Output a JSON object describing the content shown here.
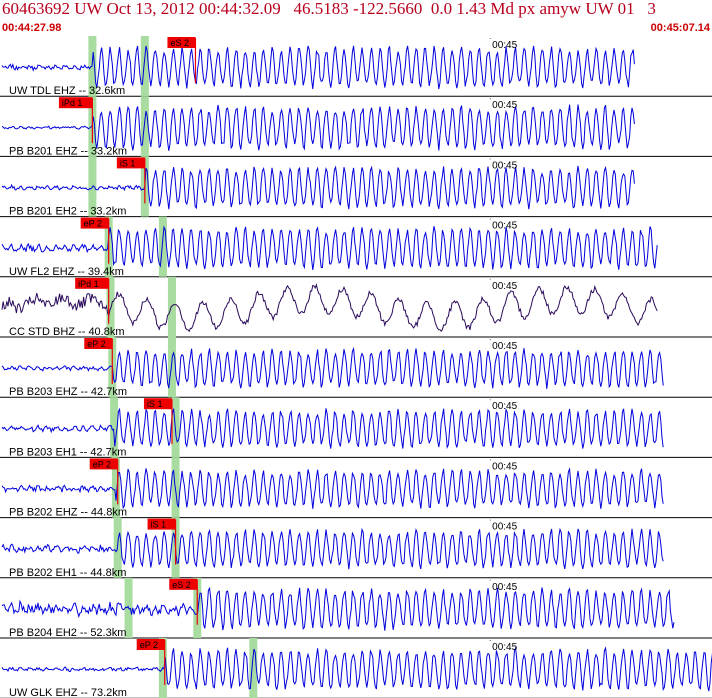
{
  "header": {
    "event_line": "60463692 UW Oct 13, 2012 00:44:32.09   46.5183 -122.5660  0.0 1.43 Md px amyw UW 01   3",
    "start_time": "00:44:27.98",
    "end_time": "00:45:07.14"
  },
  "colors": {
    "trace": "#0000dd",
    "trace_alt": "#2a0a5a",
    "phase_flag": "#ee0000",
    "window": "#a8dca0",
    "header_text": "#b8001e"
  },
  "chart_data": {
    "type": "seismogram",
    "time_range": [
      "00:44:27.98",
      "00:45:07.14"
    ],
    "minute_tick_label": "00:45",
    "traces": [
      {
        "label": "UW TDL EHZ -- 32.6km",
        "phase": "eS 2",
        "pick_time_s": 10.7,
        "window_times_s": [
          5.0,
          7.9
        ],
        "onset_s": 5.0,
        "end_s": 35.0,
        "pre_amp": 0.15,
        "post_amp": 0.75,
        "color": "blue"
      },
      {
        "label": "PB B201 EHZ -- 33.2km",
        "phase": "iPd 1",
        "pick_time_s": 5.0,
        "window_times_s": [
          5.0,
          7.9
        ],
        "onset_s": 5.0,
        "end_s": 35.0,
        "pre_amp": 0.08,
        "post_amp": 0.8,
        "color": "blue"
      },
      {
        "label": "PB B201 EH2 -- 33.2km",
        "phase": "iS 1",
        "pick_time_s": 7.9,
        "window_times_s": [
          5.0,
          7.9
        ],
        "onset_s": 7.9,
        "end_s": 35.0,
        "pre_amp": 0.12,
        "post_amp": 0.75,
        "color": "blue"
      },
      {
        "label": "UW FL2 EHZ -- 39.4km",
        "phase": "eP 2",
        "pick_time_s": 5.9,
        "window_times_s": [
          5.9,
          8.9
        ],
        "onset_s": 5.9,
        "end_s": 36.3,
        "pre_amp": 0.2,
        "post_amp": 0.75,
        "color": "blue"
      },
      {
        "label": "CC STD BHZ -- 40.8km",
        "phase": "iPd 1",
        "pick_time_s": 5.9,
        "window_times_s": [
          6.0,
          9.4
        ],
        "onset_s": 5.9,
        "end_s": 36.3,
        "pre_amp": 0.45,
        "post_amp": 0.55,
        "color": "dark"
      },
      {
        "label": "PB B203 EHZ -- 42.7km",
        "phase": "eP 2",
        "pick_time_s": 6.1,
        "window_times_s": [
          6.1,
          9.4
        ],
        "onset_s": 6.1,
        "end_s": 36.6,
        "pre_amp": 0.12,
        "post_amp": 0.7,
        "color": "blue"
      },
      {
        "label": "PB B203 EH1 -- 42.7km",
        "phase": "iS 1",
        "pick_time_s": 9.4,
        "window_times_s": [
          6.2,
          9.6
        ],
        "onset_s": 6.2,
        "end_s": 36.6,
        "pre_amp": 0.15,
        "post_amp": 0.7,
        "color": "blue"
      },
      {
        "label": "PB B202 EHZ -- 44.8km",
        "phase": "eP 2",
        "pick_time_s": 6.4,
        "window_times_s": [
          6.3,
          9.6
        ],
        "onset_s": 6.3,
        "end_s": 36.6,
        "pre_amp": 0.18,
        "post_amp": 0.7,
        "color": "blue"
      },
      {
        "label": "PB B202 EH1 -- 44.8km",
        "phase": "iS 1",
        "pick_time_s": 9.6,
        "window_times_s": [
          6.4,
          9.6
        ],
        "onset_s": 6.4,
        "end_s": 36.6,
        "pre_amp": 0.22,
        "post_amp": 0.7,
        "color": "blue"
      },
      {
        "label": "PB B204 EH2 -- 52.3km",
        "phase": "eS 2",
        "pick_time_s": 10.8,
        "window_times_s": [
          7.0,
          10.8
        ],
        "onset_s": 10.8,
        "end_s": 37.2,
        "pre_amp": 0.35,
        "post_amp": 0.75,
        "color": "blue"
      },
      {
        "label": "UW GLK EHZ -- 73.2km",
        "phase": "eP 2",
        "pick_time_s": 9.0,
        "window_times_s": [
          8.9,
          13.9
        ],
        "onset_s": 9.0,
        "end_s": 40.0,
        "pre_amp": 0.1,
        "post_amp": 0.75,
        "color": "blue"
      }
    ]
  }
}
